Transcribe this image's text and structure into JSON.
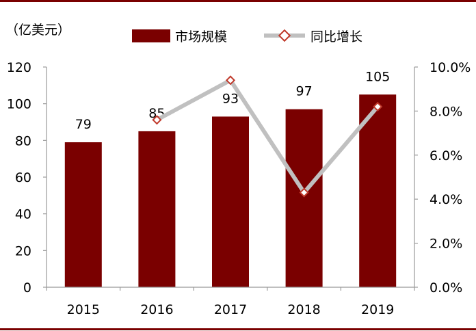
{
  "chart_data": {
    "type": "bar+line",
    "unit_label": "（亿美元）",
    "categories": [
      "2015",
      "2016",
      "2017",
      "2018",
      "2019"
    ],
    "series": [
      {
        "name": "市场规模",
        "type": "bar",
        "axis": "left",
        "values": [
          79,
          85,
          93,
          97,
          105
        ],
        "color": "#7a0000"
      },
      {
        "name": "同比增长",
        "type": "line",
        "axis": "right",
        "values": [
          null,
          7.6,
          9.4,
          4.3,
          8.2
        ],
        "color": "#c0c0c0",
        "marker_color": "#c0392b"
      }
    ],
    "y_left": {
      "min": 0,
      "max": 120,
      "ticks": [
        "0",
        "20",
        "40",
        "60",
        "80",
        "100",
        "120"
      ]
    },
    "y_right": {
      "min": 0,
      "max": 10,
      "ticks": [
        "0.0%",
        "2.0%",
        "4.0%",
        "6.0%",
        "8.0%",
        "10.0%"
      ]
    },
    "legend_position": "top-center",
    "grid": false,
    "frame_color": "#7a0000"
  }
}
